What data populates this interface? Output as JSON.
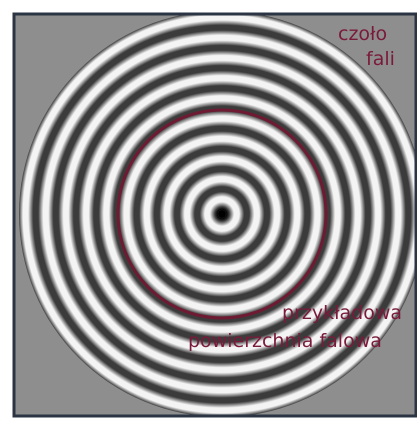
{
  "labels": {
    "wavefront_line1": "czoło",
    "wavefront_line2": "fali",
    "surface_line1": "przykładowa",
    "surface_line2": "powierzchnia falowa"
  },
  "colors": {
    "background_panel": "#8e8e8e",
    "frame": "#2a3443",
    "ring_light": "#f4f4f4",
    "ring_dark": "#3b3b3b",
    "highlight_circle": "#6e1a32",
    "label_text": "#7a1a3a"
  },
  "rings": {
    "count": 10,
    "wavefront_count": 1,
    "highlighted_ring_index": 5
  }
}
